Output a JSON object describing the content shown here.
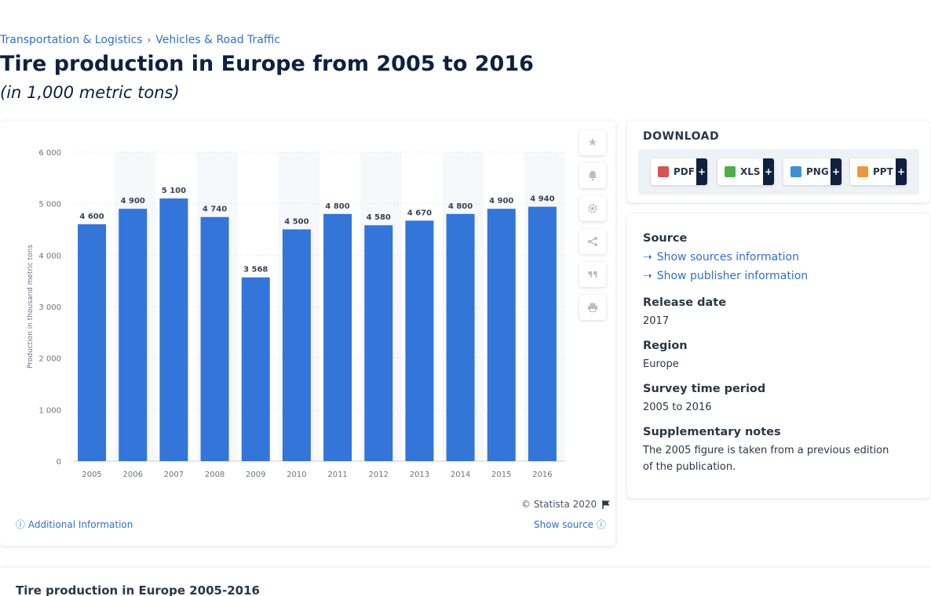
{
  "breadcrumb": {
    "item1": "Transportation & Logistics",
    "separator": "›",
    "item2": "Vehicles & Road Traffic"
  },
  "title": "Tire production in Europe from 2005 to 2016",
  "subtitle": "(in 1,000 metric tons)",
  "chart_data": {
    "type": "bar",
    "categories": [
      "2005",
      "2006",
      "2007",
      "2008",
      "2009",
      "2010",
      "2011",
      "2012",
      "2013",
      "2014",
      "2015",
      "2016"
    ],
    "values": [
      4600,
      4900,
      5100,
      4740,
      3568,
      4500,
      4800,
      4580,
      4670,
      4800,
      4900,
      4940
    ],
    "value_labels": [
      "4 600",
      "4 900",
      "5 100",
      "4 740",
      "3 568",
      "4 500",
      "4 800",
      "4 580",
      "4 670",
      "4 800",
      "4 900",
      "4 940"
    ],
    "ylabel": "Production in thousand metric tons",
    "ylim": [
      0,
      6000
    ],
    "yticks": [
      0,
      1000,
      2000,
      3000,
      4000,
      5000,
      6000
    ],
    "ytick_labels": [
      "0",
      "1 000",
      "2 000",
      "3 000",
      "4 000",
      "5 000",
      "6 000"
    ],
    "bar_color": "#3375d9",
    "grid": true
  },
  "chart_footer": {
    "copyright": "© Statista 2020",
    "additional_info": "Additional Information",
    "show_source": "Show source"
  },
  "download": {
    "title": "DOWNLOAD",
    "buttons": [
      {
        "label": "PDF",
        "color": "#d9534f"
      },
      {
        "label": "XLS",
        "color": "#4cae4c"
      },
      {
        "label": "PNG",
        "color": "#3d8fd6"
      },
      {
        "label": "PPT",
        "color": "#f0963a"
      }
    ],
    "plus": "+"
  },
  "info": {
    "source_label": "Source",
    "show_sources": "Show sources information",
    "show_publisher": "Show publisher information",
    "release_label": "Release date",
    "release_value": "2017",
    "region_label": "Region",
    "region_value": "Europe",
    "survey_label": "Survey time period",
    "survey_value": "2005 to 2016",
    "notes_label": "Supplementary notes",
    "notes_value": "The 2005 figure is taken from a previous edition of the publication."
  },
  "bottom": {
    "title": "Tire production in Europe 2005-2016"
  }
}
